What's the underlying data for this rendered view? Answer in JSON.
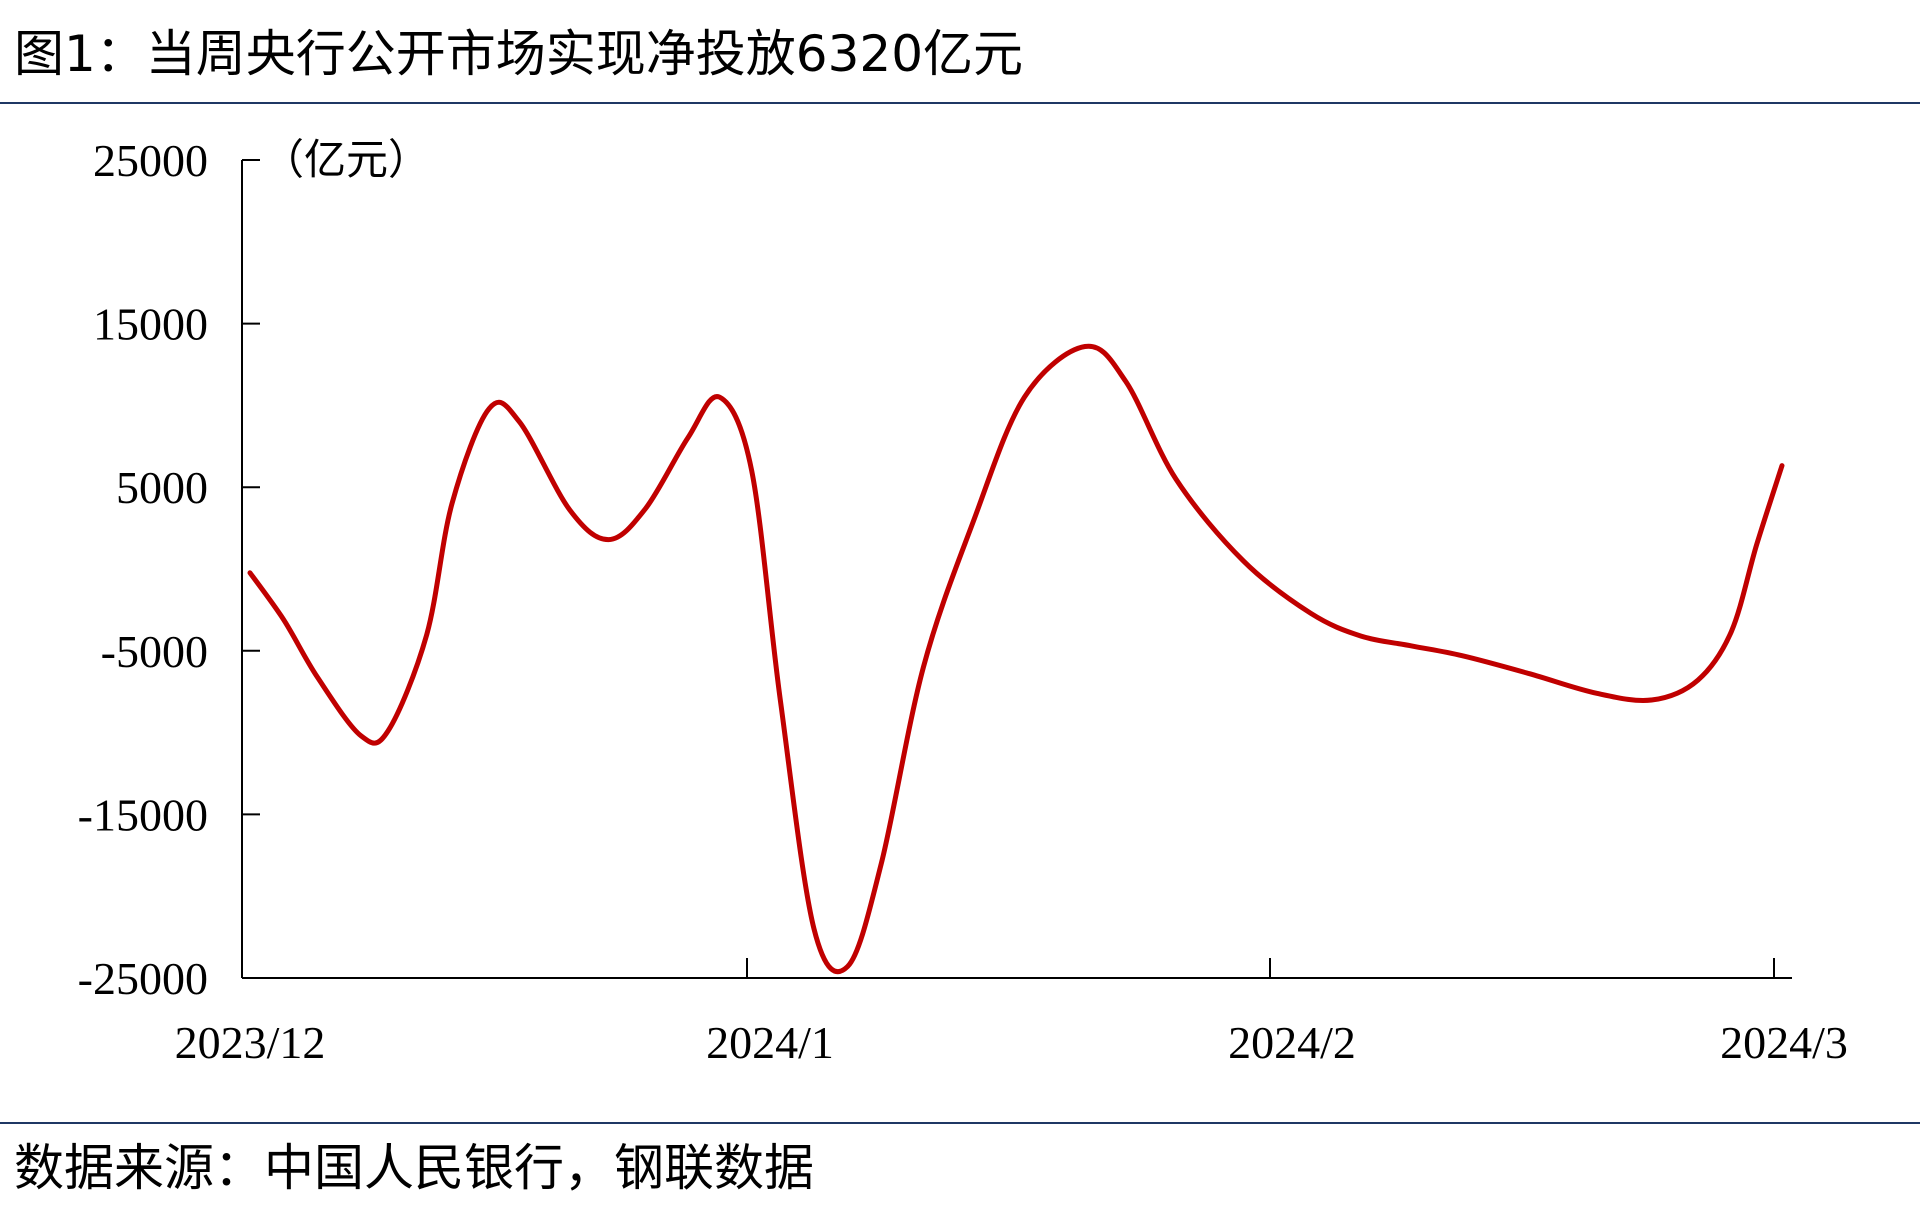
{
  "title": "图1：当周央行公开市场实现净投放6320亿元",
  "source": "数据来源：中国人民银行，钢联数据",
  "colors": {
    "line": "#c00000",
    "rule": "#1f3864",
    "axis": "#000000"
  },
  "chart_data": {
    "type": "line",
    "unit_label": "（亿元）",
    "ylim": [
      -25000,
      25000
    ],
    "yticks": [
      25000,
      15000,
      5000,
      -5000,
      -15000,
      -25000
    ],
    "xtick_labels": [
      "2023/12",
      "2024/1",
      "2024/2",
      "2024/3"
    ],
    "xlim_days": [
      0,
      91
    ],
    "grid": false,
    "series": [
      {
        "points": [
          {
            "x": 0.0,
            "y": -234
          },
          {
            "x": 2.0,
            "y": -3100
          },
          {
            "x": 4.0,
            "y": -6600
          },
          {
            "x": 6.6,
            "y": -10200
          },
          {
            "x": 8.2,
            "y": -9900
          },
          {
            "x": 10.5,
            "y": -4000
          },
          {
            "x": 12.0,
            "y": 4000
          },
          {
            "x": 14.2,
            "y": 9800
          },
          {
            "x": 16.0,
            "y": 9000
          },
          {
            "x": 19.0,
            "y": 3600
          },
          {
            "x": 21.3,
            "y": 1800
          },
          {
            "x": 23.5,
            "y": 3700
          },
          {
            "x": 26.0,
            "y": 8000
          },
          {
            "x": 27.9,
            "y": 10500
          },
          {
            "x": 29.8,
            "y": 6000
          },
          {
            "x": 31.5,
            "y": -8000
          },
          {
            "x": 33.5,
            "y": -22000
          },
          {
            "x": 35.5,
            "y": -24300
          },
          {
            "x": 37.5,
            "y": -18000
          },
          {
            "x": 40.0,
            "y": -6000
          },
          {
            "x": 43.0,
            "y": 3000
          },
          {
            "x": 46.0,
            "y": 10500
          },
          {
            "x": 49.6,
            "y": 13600
          },
          {
            "x": 52.0,
            "y": 11500
          },
          {
            "x": 55.0,
            "y": 5500
          },
          {
            "x": 59.0,
            "y": 500
          },
          {
            "x": 63.0,
            "y": -2700
          },
          {
            "x": 66.0,
            "y": -4100
          },
          {
            "x": 69.0,
            "y": -4700
          },
          {
            "x": 72.0,
            "y": -5300
          },
          {
            "x": 76.0,
            "y": -6400
          },
          {
            "x": 80.0,
            "y": -7600
          },
          {
            "x": 83.3,
            "y": -8000
          },
          {
            "x": 86.0,
            "y": -6800
          },
          {
            "x": 88.0,
            "y": -3800
          },
          {
            "x": 89.5,
            "y": 1500
          },
          {
            "x": 91.0,
            "y": 6320
          }
        ]
      }
    ]
  }
}
